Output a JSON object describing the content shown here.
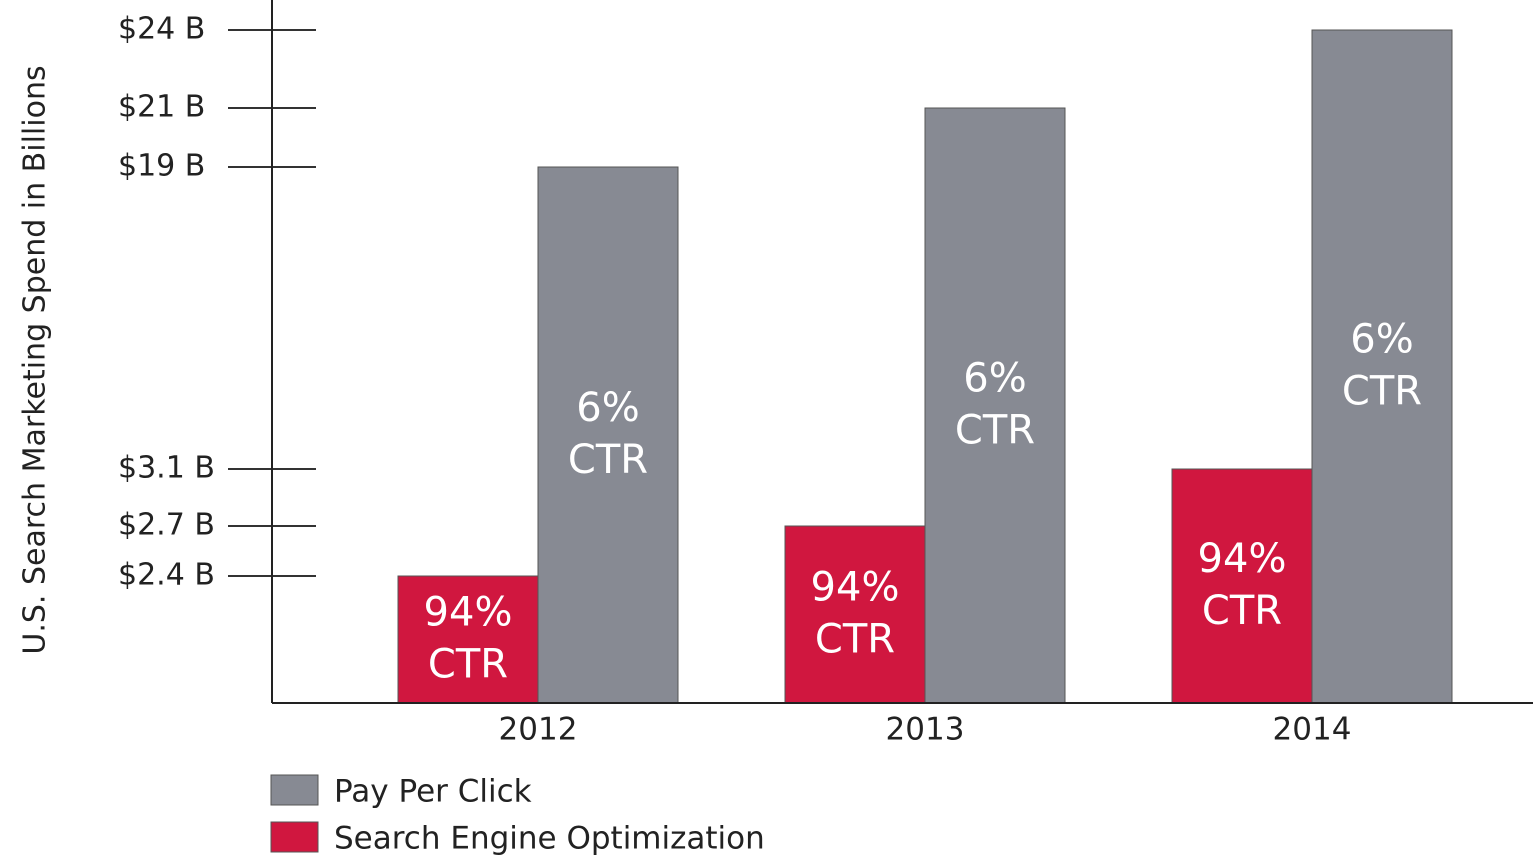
{
  "chart_data": {
    "type": "bar",
    "ylabel": "U.S. Search Marketing Spend in Billions",
    "categories": [
      "2012",
      "2013",
      "2014"
    ],
    "series": [
      {
        "name": "Search Engine Optimization",
        "color": "#d0173f",
        "values": [
          2.4,
          2.7,
          3.1
        ],
        "annotation": [
          "94%",
          "CTR"
        ]
      },
      {
        "name": "Pay Per Click",
        "color": "#878a93",
        "values": [
          19,
          21,
          24
        ],
        "annotation": [
          "6%",
          "CTR"
        ]
      }
    ],
    "ylim": [
      0,
      24
    ],
    "yticks": [
      {
        "value": 2.4,
        "label": "$2.4 B"
      },
      {
        "value": 2.7,
        "label": "$2.7 B"
      },
      {
        "value": 3.1,
        "label": "$3.1 B"
      },
      {
        "value": 19,
        "label": "$19 B"
      },
      {
        "value": 21,
        "label": "$21 B"
      },
      {
        "value": 24,
        "label": "$24 B"
      }
    ],
    "legend": [
      "Pay Per Click",
      "Search Engine Optimization"
    ]
  }
}
